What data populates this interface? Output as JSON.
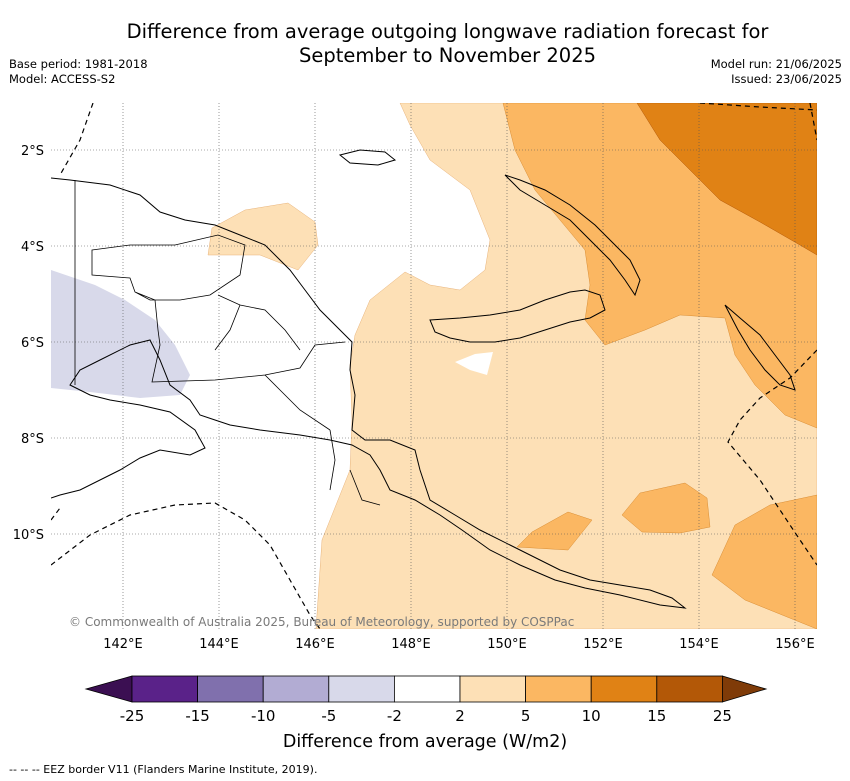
{
  "title_line1": "Difference from average outgoing longwave radiation forecast for",
  "title_line2": "September to November 2025",
  "meta": {
    "base_period": "Base period: 1981-2018",
    "model": "Model: ACCESS-S2",
    "model_run": "Model run: 21/06/2025",
    "issued": "Issued: 23/06/2025"
  },
  "axes": {
    "lon_ticks": [
      "142°E",
      "144°E",
      "146°E",
      "148°E",
      "150°E",
      "152°E",
      "154°E",
      "156°E"
    ],
    "lat_ticks": [
      "2°S",
      "4°S",
      "6°S",
      "8°S",
      "10°S"
    ]
  },
  "copyright": "© Commonwealth of Australia 2025, Bureau of Meteorology, supported by COSPPac",
  "colorbar": {
    "label": "Difference from average (W/m2)",
    "ticks": [
      "-25",
      "-15",
      "-10",
      "-5",
      "-2",
      "2",
      "5",
      "10",
      "15",
      "25"
    ],
    "colors": [
      "#3b0f52",
      "#5a2289",
      "#8070ad",
      "#b2acd3",
      "#d8d9ea",
      "#ffffff",
      "#fde0b6",
      "#fbb762",
      "#e08215",
      "#b35807",
      "#7f3b08"
    ]
  },
  "footer": "--  --  -- EEZ border V11 (Flanders Marine Institute, 2019)."
}
